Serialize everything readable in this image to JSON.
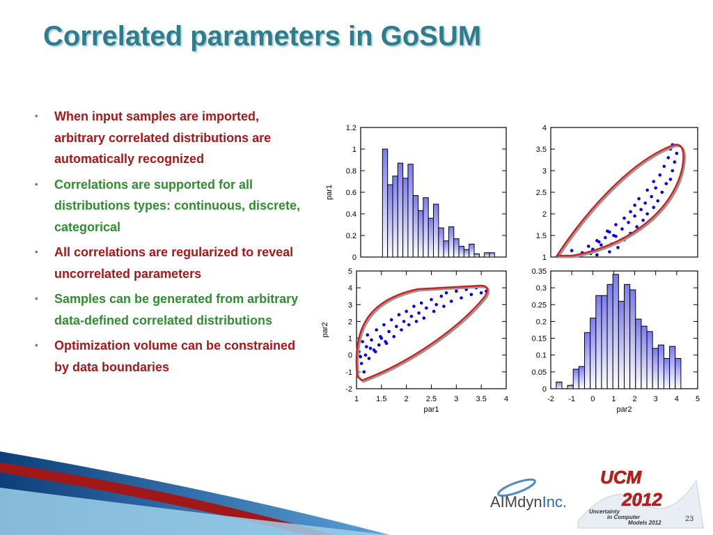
{
  "title": "Correlated parameters in GoSUM",
  "bullets": [
    "When input samples are imported, arbitrary correlated distributions are automatically recognized",
    "Correlations are supported for all distributions types: continuous, discrete, categorical",
    "All correlations are regularized to reveal uncorrelated parameters",
    "Samples can be generated from arbitrary data-defined correlated distributions",
    "Optimization volume can be constrained by data boundaries"
  ],
  "footer": {
    "brand": "AIMdyn",
    "brand_suffix": "Inc.",
    "conf": "UCM",
    "year": "2012",
    "conf_line1": "Uncertainty",
    "conf_line2": "in Computer",
    "conf_line3": "Models 2012",
    "page": "23"
  },
  "chart_data": [
    {
      "type": "histogram",
      "ylabel": "par1",
      "color": "#6a6af0",
      "bins": [
        1.45,
        1.555,
        1.66,
        1.765,
        1.87,
        1.975,
        2.08,
        2.185,
        2.29,
        2.395,
        2.5,
        2.605,
        2.71,
        2.815,
        2.92,
        3.025,
        3.13,
        3.235,
        3.34,
        3.445,
        3.55,
        3.655,
        3.76
      ],
      "values": [
        1.0,
        0.67,
        0.75,
        0.87,
        0.73,
        0.86,
        0.57,
        0.43,
        0.55,
        0.36,
        0.49,
        0.27,
        0.15,
        0.28,
        0.17,
        0.1,
        0.07,
        0.12,
        0.03,
        0,
        0.04,
        0.04
      ],
      "xlim": [
        1,
        4
      ],
      "ylim": [
        0,
        1.2
      ],
      "yticks": [
        0,
        0.2,
        0.4,
        0.6,
        0.8,
        1,
        1.2
      ]
    },
    {
      "type": "scatter",
      "color": "#0000ee",
      "x": [
        0.2,
        -0.5,
        0.8,
        -1.0,
        0.5,
        1.2,
        -0.2,
        0.9,
        0.3,
        1.5,
        0.6,
        1.0,
        1.8,
        0.7,
        1.4,
        2.1,
        1.1,
        1.7,
        2.4,
        1.5,
        2.0,
        2.6,
        1.8,
        2.3,
        2.9,
        2.0,
        2.5,
        3.1,
        2.2,
        2.8,
        3.3,
        2.6,
        3.0,
        3.5,
        2.9,
        3.7,
        3.2,
        3.8,
        3.4,
        3.9,
        3.6,
        4.0,
        3.7,
        3.8,
        -0.1,
        0.0,
        0.4,
        0.2,
        1.1,
        0.8
      ],
      "values": [
        1.05,
        1.1,
        1.12,
        1.15,
        1.2,
        1.22,
        1.25,
        1.3,
        1.35,
        1.4,
        1.45,
        1.5,
        1.55,
        1.6,
        1.65,
        1.7,
        1.75,
        1.8,
        1.85,
        1.9,
        1.95,
        2.0,
        2.05,
        2.1,
        2.15,
        2.2,
        2.25,
        2.3,
        2.35,
        2.4,
        2.5,
        2.55,
        2.6,
        2.7,
        2.75,
        2.8,
        2.9,
        3.0,
        3.1,
        3.2,
        3.3,
        3.4,
        3.5,
        3.6,
        1.08,
        1.18,
        1.28,
        1.38,
        1.48,
        1.58
      ],
      "xlim": [
        -2,
        5
      ],
      "ylim": [
        1,
        4
      ],
      "yticks": [
        1,
        1.5,
        2,
        2.5,
        3,
        3.5,
        4
      ]
    },
    {
      "type": "scatter",
      "xlabel": "par1",
      "ylabel": "par2",
      "color": "#0000ee",
      "x": [
        1.05,
        1.1,
        1.12,
        1.15,
        1.2,
        1.22,
        1.25,
        1.3,
        1.35,
        1.4,
        1.45,
        1.5,
        1.55,
        1.6,
        1.65,
        1.7,
        1.75,
        1.8,
        1.85,
        1.9,
        1.95,
        2.0,
        2.05,
        2.1,
        2.15,
        2.2,
        2.25,
        2.3,
        2.35,
        2.4,
        2.5,
        2.55,
        2.6,
        2.7,
        2.75,
        2.8,
        2.9,
        3.0,
        3.1,
        3.2,
        3.3,
        3.4,
        3.5,
        3.6,
        1.08,
        1.18,
        1.28,
        1.38,
        1.48,
        1.58
      ],
      "values": [
        0.2,
        -0.5,
        0.8,
        -1.0,
        0.5,
        1.2,
        -0.2,
        0.9,
        0.3,
        1.5,
        0.6,
        1.0,
        1.8,
        0.7,
        1.4,
        2.1,
        1.1,
        1.7,
        2.4,
        1.5,
        2.0,
        2.6,
        1.8,
        2.3,
        2.9,
        2.0,
        2.5,
        3.1,
        2.2,
        2.8,
        3.3,
        2.6,
        3.0,
        3.5,
        2.9,
        3.7,
        3.2,
        3.8,
        3.4,
        3.9,
        3.6,
        4.0,
        3.7,
        3.8,
        -0.1,
        0.0,
        0.4,
        0.2,
        1.1,
        0.8
      ],
      "xlim": [
        1,
        4
      ],
      "xticks": [
        1,
        1.5,
        2,
        2.5,
        3,
        3.5,
        4
      ],
      "ylim": [
        -2,
        5
      ],
      "yticks": [
        -2,
        -1,
        0,
        1,
        2,
        3,
        4,
        5
      ]
    },
    {
      "type": "histogram",
      "xlabel": "par2",
      "color": "#6a6af0",
      "bins": [
        -1.74,
        -1.47,
        -1.2,
        -0.93,
        -0.66,
        -0.39,
        -0.12,
        0.15,
        0.42,
        0.69,
        0.96,
        1.23,
        1.5,
        1.77,
        2.04,
        2.31,
        2.58,
        2.85,
        3.12,
        3.39,
        3.66,
        3.93,
        4.2
      ],
      "values": [
        0.02,
        0,
        0.01,
        0.058,
        0.066,
        0.167,
        0.21,
        0.277,
        0.277,
        0.31,
        0.34,
        0.26,
        0.31,
        0.294,
        0.207,
        0.186,
        0.17,
        0.12,
        0.13,
        0.09,
        0.126,
        0.09
      ],
      "xlim": [
        -2,
        5
      ],
      "xticks": [
        -2,
        -1,
        0,
        1,
        2,
        3,
        4,
        5
      ],
      "ylim": [
        0,
        0.35
      ],
      "yticks": [
        0,
        0.05,
        0.1,
        0.15,
        0.2,
        0.25,
        0.3,
        0.35
      ]
    }
  ]
}
